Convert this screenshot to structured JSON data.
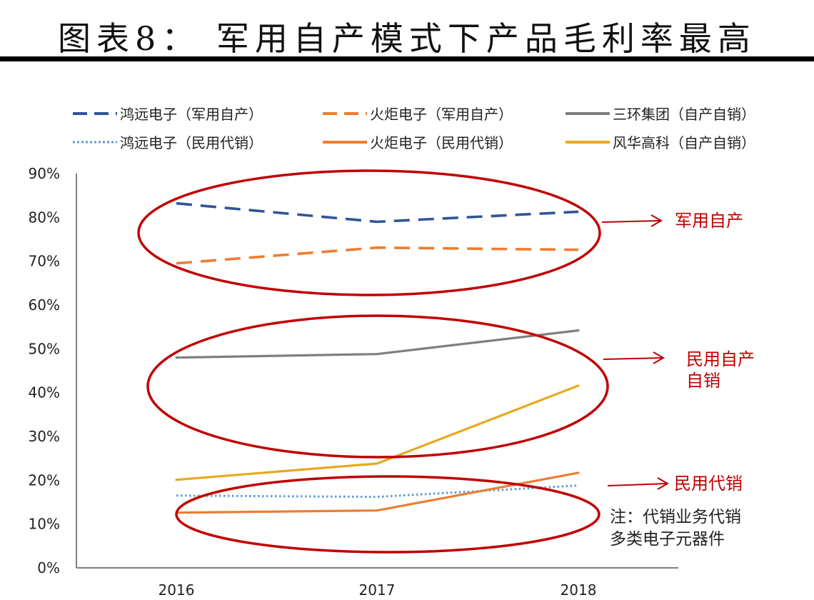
{
  "header": {
    "title": "图表8：  军用自产模式下产品毛利率最高"
  },
  "legend": [
    {
      "label": "鸿远电子（军用自产）",
      "color": "#2f5597",
      "style": "dashed"
    },
    {
      "label": "火炬电子（军用自产）",
      "color": "#ed7d31",
      "style": "dashed"
    },
    {
      "label": "三环集团（自产自销）",
      "color": "#7f7f7f",
      "style": "solid"
    },
    {
      "label": "鸿远电子（民用代销）",
      "color": "#5b9bd5",
      "style": "dotted"
    },
    {
      "label": "火炬电子（民用代销）",
      "color": "#ed7d31",
      "style": "solid"
    },
    {
      "label": "风华高科（自产自销）",
      "color": "#e6a91f",
      "style": "solid"
    }
  ],
  "annotations": {
    "military": "军用自产",
    "civil_self_line1": "民用自产",
    "civil_self_line2": "自销",
    "civil_agency": "民用代销",
    "note_line1": "注：代销业务代销",
    "note_line2": "多类电子元器件",
    "highlight_color": "#c00000"
  },
  "chart_data": {
    "type": "line",
    "title": "图表8：军用自产模式下产品毛利率最高",
    "xlabel": "",
    "ylabel": "",
    "categories": [
      "2016",
      "2017",
      "2018"
    ],
    "y_ticks": [
      "0%",
      "10%",
      "20%",
      "30%",
      "40%",
      "50%",
      "60%",
      "70%",
      "80%",
      "90%"
    ],
    "ylim": [
      0,
      90
    ],
    "grid": false,
    "legend_position": "top",
    "series": [
      {
        "name": "鸿远电子（军用自产）",
        "values": [
          83.2,
          79.0,
          81.3
        ],
        "color": "#2f5597",
        "style": "dashed"
      },
      {
        "name": "火炬电子（军用自产）",
        "values": [
          69.5,
          73.1,
          72.6
        ],
        "color": "#ed7d31",
        "style": "dashed"
      },
      {
        "name": "三环集团（自产自销）",
        "values": [
          48.0,
          48.8,
          54.2
        ],
        "color": "#7f7f7f",
        "style": "solid"
      },
      {
        "name": "鸿远电子（民用代销）",
        "values": [
          16.5,
          16.2,
          18.8
        ],
        "color": "#5b9bd5",
        "style": "dotted"
      },
      {
        "name": "火炬电子（民用代销）",
        "values": [
          12.6,
          13.1,
          21.7
        ],
        "color": "#ed7d31",
        "style": "solid"
      },
      {
        "name": "风华高科（自产自销）",
        "values": [
          20.1,
          23.8,
          41.6
        ],
        "color": "#e6a91f",
        "style": "solid"
      }
    ],
    "annotations": [
      {
        "text": "军用自产",
        "target": "ellipse around 70%-83% military series"
      },
      {
        "text": "民用自产自销",
        "target": "ellipse around 三环集团 / 风华高科"
      },
      {
        "text": "民用代销",
        "target": "ellipse around 12%-22% agency series"
      },
      {
        "text": "注：代销业务代销多类电子元器件"
      }
    ]
  }
}
